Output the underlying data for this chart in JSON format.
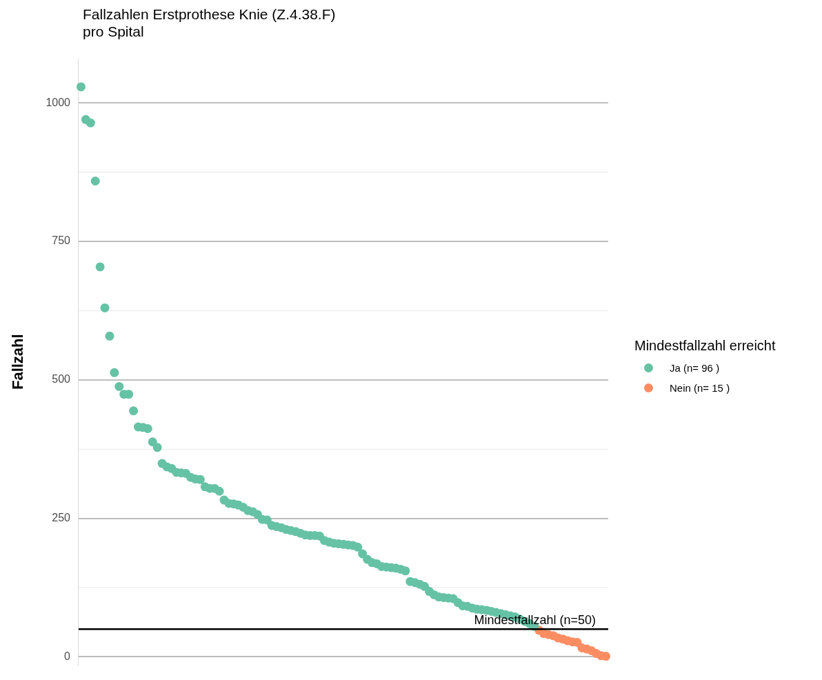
{
  "chart_data": {
    "type": "scatter",
    "title": "Fallzahlen Erstprothese Knie (Z.4.38.F)",
    "subtitle": "pro Spital",
    "ylabel": "Fallzahl",
    "legend_title": "Mindestfallzahl erreicht",
    "categories": [
      null,
      null,
      null,
      null,
      null,
      null,
      null,
      null,
      null,
      null,
      null,
      null,
      null,
      null,
      null,
      null,
      null,
      null,
      null,
      null,
      null,
      null,
      null,
      null,
      null,
      null,
      null,
      null,
      null,
      null,
      null,
      null,
      null,
      null,
      null,
      null,
      null,
      null,
      null,
      null,
      null,
      null,
      null,
      null,
      null,
      null,
      null,
      null,
      null,
      null,
      null,
      null,
      null,
      null,
      null,
      null,
      null,
      null,
      null,
      null,
      null,
      null,
      null,
      null,
      null,
      null,
      null,
      null,
      null,
      null,
      null,
      null,
      null,
      null,
      null,
      null,
      null,
      null,
      null,
      null,
      null,
      null,
      null,
      null,
      null,
      null,
      null,
      null,
      null,
      null,
      null,
      null,
      null,
      null,
      null,
      null,
      null,
      null,
      null,
      null,
      null,
      null,
      null,
      null,
      null,
      null,
      null,
      null,
      null,
      null,
      null
    ],
    "series": [
      {
        "name": "Ja (n= 96 )",
        "color": "#66c2a5",
        "values": [
          1029,
          970,
          964,
          859,
          704,
          630,
          579,
          513,
          488,
          474,
          474,
          444,
          415,
          414,
          412,
          388,
          378,
          349,
          343,
          340,
          333,
          332,
          331,
          324,
          321,
          320,
          307,
          304,
          304,
          299,
          283,
          277,
          276,
          274,
          270,
          264,
          262,
          257,
          248,
          247,
          237,
          235,
          233,
          230,
          228,
          226,
          223,
          220,
          219,
          219,
          218,
          210,
          207,
          205,
          204,
          203,
          202,
          201,
          198,
          186,
          176,
          170,
          168,
          163,
          162,
          161,
          160,
          158,
          155,
          136,
          134,
          131,
          127,
          118,
          112,
          108,
          107,
          106,
          105,
          98,
          92,
          91,
          88,
          86,
          85,
          84,
          82,
          80,
          78,
          76,
          74,
          72,
          68,
          64,
          60,
          55,
          null,
          null,
          null,
          null,
          null,
          null,
          null,
          null,
          null,
          null,
          null,
          null,
          null,
          null,
          null
        ]
      },
      {
        "name": "Nein (n= 15 )",
        "color": "#fc8d62",
        "values": [
          null,
          null,
          null,
          null,
          null,
          null,
          null,
          null,
          null,
          null,
          null,
          null,
          null,
          null,
          null,
          null,
          null,
          null,
          null,
          null,
          null,
          null,
          null,
          null,
          null,
          null,
          null,
          null,
          null,
          null,
          null,
          null,
          null,
          null,
          null,
          null,
          null,
          null,
          null,
          null,
          null,
          null,
          null,
          null,
          null,
          null,
          null,
          null,
          null,
          null,
          null,
          null,
          null,
          null,
          null,
          null,
          null,
          null,
          null,
          null,
          null,
          null,
          null,
          null,
          null,
          null,
          null,
          null,
          null,
          null,
          null,
          null,
          null,
          null,
          null,
          null,
          null,
          null,
          null,
          null,
          null,
          null,
          null,
          null,
          null,
          null,
          null,
          null,
          null,
          null,
          null,
          null,
          null,
          null,
          null,
          null,
          48,
          42,
          40,
          38,
          34,
          32,
          29,
          27,
          26,
          16,
          14,
          11,
          6,
          2,
          1
        ]
      }
    ],
    "ylim": [
      -15,
      1080
    ],
    "yticks": [
      0,
      {
        "value": 125,
        "label": null
      },
      250,
      {
        "value": 375,
        "label": null
      },
      500,
      {
        "value": 625,
        "label": null
      },
      750,
      {
        "value": 875,
        "label": null
      },
      1000
    ],
    "grid": "y",
    "tick_labels": "y",
    "marker": "circle",
    "legend": "right",
    "ref_lines": [
      {
        "axis": "y",
        "value": 50,
        "label": "Mindestfallzahl (n=50)",
        "color": "#000000"
      }
    ]
  }
}
